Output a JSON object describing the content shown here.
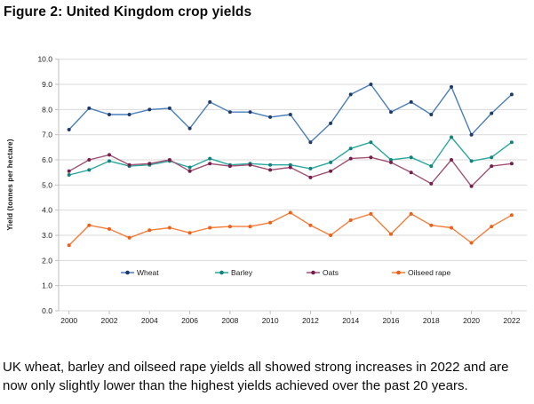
{
  "figure": {
    "title": "Figure 2: United Kingdom crop yields",
    "caption": "UK wheat, barley and oilseed rape yields all showed strong increases in 2022 and are now only slightly lower than the highest yields achieved over the past 20 years."
  },
  "chart_data": {
    "type": "line",
    "title": "Figure 2: United Kingdom crop yields",
    "ylabel": "Yield (tonnes per hectare)",
    "xlabel": "",
    "ylim": [
      0,
      10
    ],
    "y_tick_step": 1.0,
    "y_tick_labels": [
      "0.0",
      "1.0",
      "2.0",
      "3.0",
      "4.0",
      "5.0",
      "6.0",
      "7.0",
      "8.0",
      "9.0",
      "10.0"
    ],
    "x": [
      2000,
      2001,
      2002,
      2003,
      2004,
      2005,
      2006,
      2007,
      2008,
      2009,
      2010,
      2011,
      2012,
      2013,
      2014,
      2015,
      2016,
      2017,
      2018,
      2019,
      2020,
      2021,
      2022
    ],
    "x_tick_labels": [
      "2000",
      "2002",
      "2004",
      "2006",
      "2008",
      "2010",
      "2012",
      "2014",
      "2016",
      "2018",
      "2020",
      "2022"
    ],
    "grid": "horizontal-only",
    "legend_position": "inside-bottom",
    "grid_color": "#d9d9d9",
    "axis_color": "#bfbfbf",
    "tick_text_color": "#1a1a1a",
    "series": [
      {
        "name": "Wheat",
        "line_color": "#4a7ebb",
        "marker_color": "#1f3a68",
        "values": [
          7.2,
          8.05,
          7.8,
          7.8,
          8.0,
          8.05,
          7.25,
          8.3,
          7.9,
          7.9,
          7.7,
          7.8,
          6.7,
          7.45,
          8.6,
          9.0,
          7.9,
          8.3,
          7.8,
          8.9,
          7.0,
          7.85,
          8.6
        ]
      },
      {
        "name": "Barley",
        "line_color": "#2aa79e",
        "marker_color": "#12837b",
        "values": [
          5.4,
          5.6,
          5.95,
          5.75,
          5.8,
          5.95,
          5.7,
          6.05,
          5.8,
          5.85,
          5.8,
          5.8,
          5.65,
          5.9,
          6.45,
          6.7,
          6.0,
          6.1,
          5.75,
          6.9,
          5.95,
          6.1,
          6.7
        ]
      },
      {
        "name": "Oats",
        "line_color": "#a05273",
        "marker_color": "#75204c",
        "values": [
          5.55,
          6.0,
          6.2,
          5.8,
          5.85,
          6.0,
          5.55,
          5.85,
          5.75,
          5.8,
          5.6,
          5.7,
          5.3,
          5.55,
          6.05,
          6.1,
          5.9,
          5.5,
          5.05,
          6.0,
          4.95,
          5.75,
          5.85
        ]
      },
      {
        "name": "Oilseed rape",
        "line_color": "#f57e3b",
        "marker_color": "#ee5f17",
        "values": [
          2.6,
          3.4,
          3.25,
          2.9,
          3.2,
          3.3,
          3.1,
          3.3,
          3.35,
          3.35,
          3.5,
          3.9,
          3.4,
          3.0,
          3.6,
          3.85,
          3.05,
          3.85,
          3.4,
          3.3,
          2.7,
          3.35,
          3.8
        ]
      }
    ]
  }
}
